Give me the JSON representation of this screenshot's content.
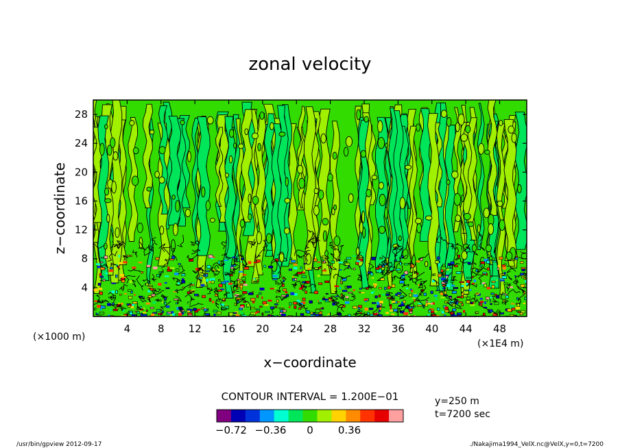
{
  "chart_data": {
    "type": "heatmap",
    "title": "zonal velocity",
    "xlabel": "x−coordinate",
    "ylabel": "z−coordinate",
    "x_unit": "(×1E4 m)",
    "y_unit": "(×1000 m)",
    "xlim": [
      0,
      51.2
    ],
    "ylim": [
      0,
      30
    ],
    "x_ticks": [
      4,
      8,
      12,
      16,
      20,
      24,
      28,
      32,
      36,
      40,
      44,
      48
    ],
    "y_ticks": [
      4,
      8,
      12,
      16,
      20,
      24,
      28
    ],
    "contour_interval_text": "CONTOUR INTERVAL = 1.200E−01",
    "colorbar": {
      "levels": [
        -0.72,
        -0.6,
        -0.48,
        -0.36,
        -0.24,
        -0.12,
        0,
        0.12,
        0.24,
        0.36,
        0.48,
        0.6,
        0.72
      ],
      "colors": [
        "#800080",
        "#0000b4",
        "#0032dc",
        "#0096ff",
        "#00ffd2",
        "#00e65a",
        "#32dc00",
        "#a0f000",
        "#ffd200",
        "#ff8c00",
        "#ff3200",
        "#e60000",
        "#ffa0a0"
      ],
      "tick_labels": [
        "−0.72",
        "−0.36",
        "0",
        "0.36"
      ]
    }
  },
  "info": {
    "y_text": "y=250 m",
    "t_text": "t=7200 sec"
  },
  "footer": {
    "left": "/usr/bin/gpview  2012-09-17",
    "right": "./Nakajima1994_VelX.nc@VelX,y=0,t=7200"
  }
}
